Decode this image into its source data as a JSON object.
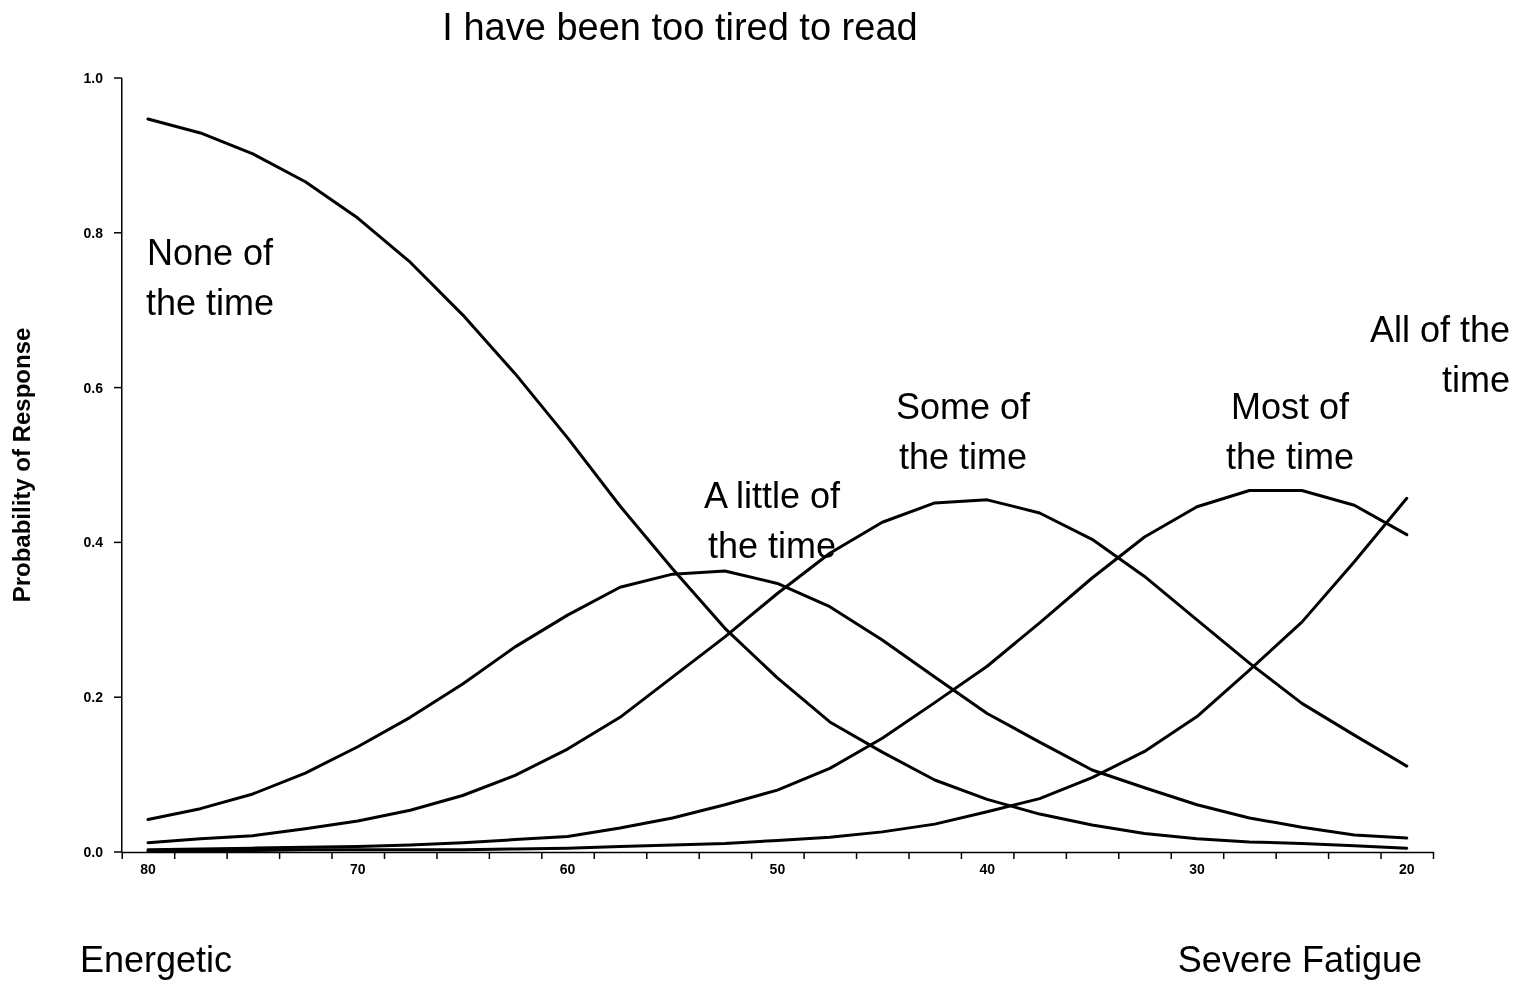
{
  "chart_data": {
    "type": "line",
    "title": "I have been too tired to read",
    "ylabel": "Probability of Response",
    "annotations": [
      "Energetic",
      "Severe Fatigue"
    ],
    "categories": [
      "80",
      null,
      null,
      null,
      "70",
      null,
      null,
      null,
      "60",
      null,
      null,
      null,
      "50",
      null,
      null,
      null,
      "40",
      null,
      null,
      null,
      "30",
      null,
      null,
      null,
      "20"
    ],
    "ylim": [
      0,
      1
    ],
    "yticks": [
      {
        "value": 0,
        "label": "0.0"
      },
      0.2,
      0.4,
      0.6,
      0.8,
      {
        "value": 1,
        "label": "1.0"
      }
    ],
    "grid": false,
    "legend": false,
    "marker": "none",
    "line_style": "solid",
    "series": [
      {
        "name": "None of the time",
        "color": "#000000",
        "values": [
          0.947,
          0.929,
          0.902,
          0.866,
          0.819,
          0.762,
          0.694,
          0.618,
          0.535,
          0.447,
          0.366,
          0.289,
          0.225,
          0.168,
          0.129,
          0.093,
          0.068,
          0.049,
          0.035,
          0.024,
          0.017,
          0.013,
          0.011,
          0.008,
          0.005
        ]
      },
      {
        "name": "A little of the time",
        "color": "#000000",
        "values": [
          0.042,
          0.056,
          0.075,
          0.102,
          0.136,
          0.174,
          0.217,
          0.265,
          0.306,
          0.342,
          0.359,
          0.363,
          0.347,
          0.317,
          0.274,
          0.226,
          0.179,
          0.142,
          0.106,
          0.083,
          0.061,
          0.044,
          0.032,
          0.022,
          0.018
        ]
      },
      {
        "name": "Some of the time",
        "color": "#000000",
        "values": [
          0.012,
          0.017,
          0.021,
          0.03,
          0.04,
          0.054,
          0.073,
          0.099,
          0.133,
          0.174,
          0.226,
          0.278,
          0.334,
          0.386,
          0.426,
          0.451,
          0.455,
          0.438,
          0.404,
          0.356,
          0.3,
          0.244,
          0.192,
          0.151,
          0.111
        ]
      },
      {
        "name": "Most of the time",
        "color": "#000000",
        "values": [
          0.003,
          0.004,
          0.005,
          0.006,
          0.007,
          0.009,
          0.012,
          0.016,
          0.02,
          0.031,
          0.044,
          0.061,
          0.08,
          0.108,
          0.147,
          0.193,
          0.24,
          0.296,
          0.354,
          0.407,
          0.446,
          0.467,
          0.467,
          0.448,
          0.41
        ]
      },
      {
        "name": "All of the time",
        "color": "#000000",
        "values": [
          0.001,
          0.001,
          0.002,
          0.003,
          0.003,
          0.003,
          0.003,
          0.004,
          0.005,
          0.007,
          0.009,
          0.011,
          0.015,
          0.019,
          0.026,
          0.036,
          0.052,
          0.069,
          0.096,
          0.13,
          0.175,
          0.235,
          0.297,
          0.375,
          0.457
        ]
      }
    ]
  }
}
